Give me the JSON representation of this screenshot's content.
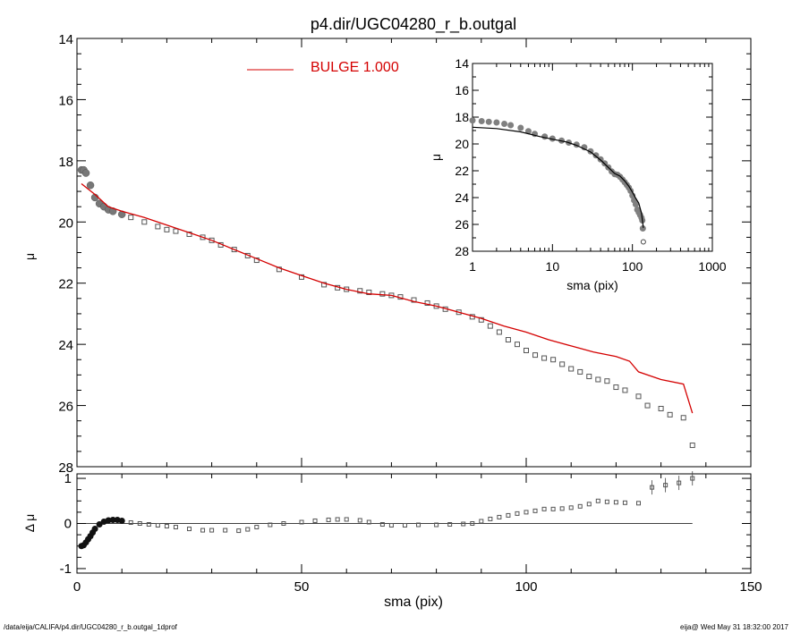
{
  "footer": {
    "left": "/data/eija/CALIFA/p4.dir/UGC04280_r_b.outgal_1dprof",
    "right": "eija@  Wed May 31 18:32:00 2017"
  },
  "chart_data": [
    {
      "id": "main",
      "type": "scatter",
      "title": "p4.dir/UGC04280_r_b.outgal",
      "xlabel": "",
      "ylabel": "μ",
      "xlim": [
        0,
        150
      ],
      "ylim": [
        28,
        14
      ],
      "y_reversed": true,
      "x_ticks": [
        0,
        50,
        100,
        150
      ],
      "y_ticks": [
        14,
        16,
        18,
        20,
        22,
        24,
        26,
        28
      ],
      "legend": {
        "label": "BULGE  1.000",
        "color": "#d40000",
        "placement": "top-center"
      },
      "series": [
        {
          "name": "",
          "kind": "points",
          "x": [
            1,
            1.5,
            2,
            3,
            4,
            5,
            6,
            7,
            8,
            10,
            12,
            15,
            18,
            20,
            22,
            25,
            28,
            30,
            32,
            35,
            38,
            40,
            45,
            50,
            55,
            58,
            60,
            63,
            65,
            68,
            70,
            72,
            75,
            78,
            80,
            82,
            85,
            88,
            90,
            92,
            94,
            96,
            98,
            100,
            102,
            104,
            106,
            108,
            110,
            112,
            114,
            116,
            118,
            120,
            122,
            125,
            127,
            130,
            132,
            135,
            137
          ],
          "y": [
            18.3,
            18.3,
            18.4,
            18.8,
            19.2,
            19.4,
            19.5,
            19.6,
            19.65,
            19.75,
            19.85,
            20.0,
            20.15,
            20.25,
            20.3,
            20.4,
            20.5,
            20.6,
            20.75,
            20.9,
            21.1,
            21.25,
            21.55,
            21.8,
            22.05,
            22.15,
            22.2,
            22.25,
            22.3,
            22.35,
            22.4,
            22.45,
            22.55,
            22.65,
            22.75,
            22.85,
            22.95,
            23.1,
            23.2,
            23.4,
            23.6,
            23.85,
            24.0,
            24.2,
            24.35,
            24.45,
            24.5,
            24.65,
            24.8,
            24.9,
            25.05,
            25.15,
            25.2,
            25.4,
            25.5,
            25.7,
            26.0,
            26.1,
            26.3,
            26.4,
            27.3
          ]
        },
        {
          "name": "",
          "kind": "line",
          "color": "#d40000",
          "x": [
            1,
            4,
            7,
            10,
            15,
            20,
            25,
            30,
            35,
            40,
            45,
            50,
            55,
            60,
            65,
            70,
            75,
            80,
            85,
            90,
            95,
            100,
            105,
            110,
            115,
            120,
            123,
            125,
            130,
            135,
            137
          ],
          "y": [
            18.75,
            19.1,
            19.5,
            19.65,
            19.85,
            20.1,
            20.35,
            20.6,
            20.9,
            21.2,
            21.5,
            21.75,
            22.0,
            22.2,
            22.35,
            22.4,
            22.6,
            22.75,
            22.95,
            23.15,
            23.4,
            23.6,
            23.85,
            24.05,
            24.25,
            24.4,
            24.55,
            24.9,
            25.15,
            25.3,
            26.25
          ]
        }
      ]
    },
    {
      "id": "inset",
      "type": "line",
      "xlabel": "sma (pix)",
      "ylabel": "μ",
      "x_log": true,
      "xlim": [
        1,
        1000
      ],
      "ylim": [
        28,
        14
      ],
      "y_reversed": true,
      "x_ticks": [
        1,
        10,
        100,
        1000
      ],
      "y_ticks": [
        14,
        16,
        18,
        20,
        22,
        24,
        26,
        28
      ],
      "series": [
        {
          "name": "",
          "kind": "points",
          "color": "#808080",
          "x": [
            1,
            1.3,
            1.6,
            2,
            2.5,
            3,
            4,
            5,
            6,
            8,
            10,
            13,
            16,
            20,
            25,
            30,
            35,
            40,
            45,
            50,
            55,
            60,
            65,
            70,
            75,
            80,
            85,
            90,
            95,
            100,
            105,
            110,
            115,
            120,
            125,
            130,
            133,
            135,
            137
          ],
          "y": [
            18.25,
            18.3,
            18.35,
            18.4,
            18.5,
            18.6,
            18.8,
            19.05,
            19.25,
            19.45,
            19.6,
            19.75,
            19.9,
            20.05,
            20.25,
            20.55,
            20.85,
            21.15,
            21.45,
            21.75,
            22.05,
            22.25,
            22.3,
            22.45,
            22.65,
            22.85,
            23.05,
            23.25,
            23.5,
            23.85,
            24.2,
            24.5,
            24.9,
            25.1,
            25.3,
            25.5,
            25.7,
            26.3,
            27.3
          ]
        },
        {
          "name": "",
          "kind": "line",
          "color": "#000000",
          "x": [
            1,
            2,
            4,
            7,
            10,
            15,
            20,
            30,
            40,
            50,
            60,
            70,
            80,
            90,
            100,
            110,
            120,
            130,
            137
          ],
          "y": [
            18.75,
            18.85,
            19.1,
            19.45,
            19.65,
            19.85,
            20.1,
            20.6,
            21.2,
            21.75,
            22.2,
            22.4,
            22.75,
            23.15,
            23.6,
            24.05,
            24.4,
            25.15,
            26.25
          ]
        }
      ]
    },
    {
      "id": "residual",
      "type": "scatter",
      "xlabel": "sma (pix)",
      "ylabel": "Δ μ",
      "xlim": [
        0,
        150
      ],
      "ylim": [
        -1.1,
        1.1
      ],
      "x_ticks": [
        0,
        50,
        100,
        150
      ],
      "y_ticks": [
        -1,
        0,
        1
      ],
      "series": [
        {
          "name": "",
          "kind": "points",
          "x": [
            1,
            1.5,
            2,
            2.5,
            3,
            3.5,
            4,
            5,
            6,
            7,
            8,
            9,
            10,
            12,
            14,
            16,
            18,
            20,
            22,
            25,
            28,
            30,
            33,
            36,
            38,
            40,
            43,
            46,
            50,
            53,
            56,
            58,
            60,
            63,
            65,
            68,
            70,
            73,
            76,
            80,
            83,
            86,
            88,
            90,
            92,
            94,
            96,
            98,
            100,
            102,
            104,
            106,
            108,
            110,
            112,
            114,
            116,
            118,
            120,
            122,
            125,
            128,
            131,
            134,
            137
          ],
          "y": [
            -0.5,
            -0.48,
            -0.42,
            -0.35,
            -0.28,
            -0.2,
            -0.12,
            -0.02,
            0.04,
            0.07,
            0.08,
            0.08,
            0.06,
            0.02,
            0.0,
            -0.02,
            -0.04,
            -0.06,
            -0.08,
            -0.12,
            -0.15,
            -0.15,
            -0.15,
            -0.16,
            -0.13,
            -0.08,
            -0.03,
            0.0,
            0.03,
            0.06,
            0.08,
            0.09,
            0.09,
            0.07,
            0.03,
            -0.02,
            -0.04,
            -0.04,
            -0.03,
            -0.03,
            -0.02,
            -0.01,
            0.0,
            0.05,
            0.1,
            0.14,
            0.18,
            0.22,
            0.25,
            0.28,
            0.32,
            0.32,
            0.33,
            0.35,
            0.38,
            0.43,
            0.5,
            0.48,
            0.47,
            0.46,
            0.45,
            0.8,
            0.85,
            0.9,
            1.0
          ]
        }
      ]
    }
  ]
}
